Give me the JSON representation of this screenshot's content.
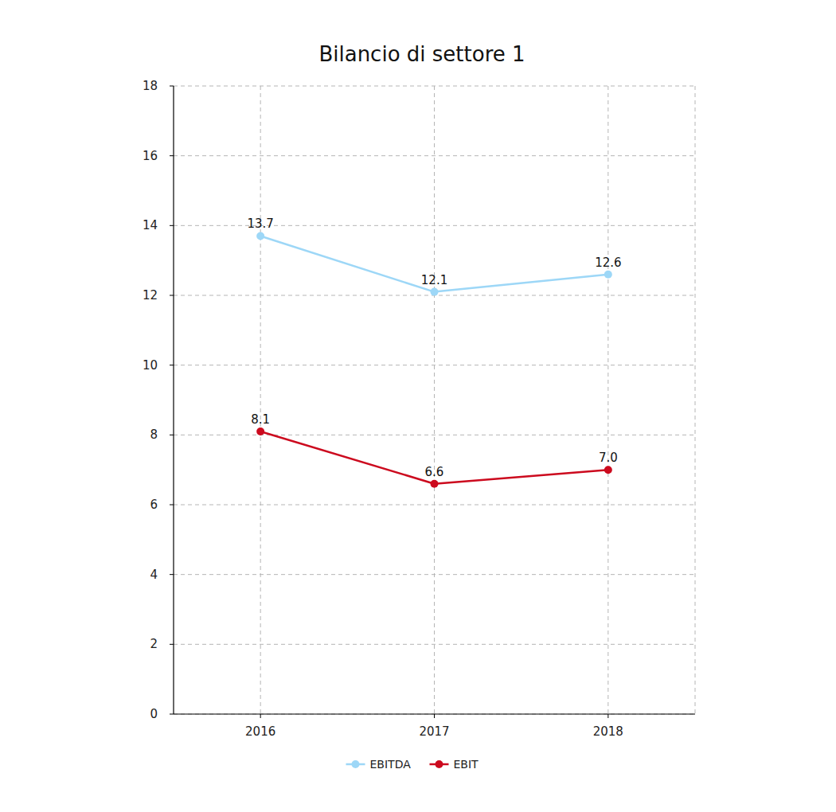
{
  "chart_data": {
    "type": "line",
    "title": "Bilancio di settore 1",
    "categories": [
      "2016",
      "2017",
      "2018"
    ],
    "series": [
      {
        "name": "EBITDA",
        "color": "#9dd7f7",
        "values": [
          13.7,
          12.1,
          12.6
        ]
      },
      {
        "name": "EBIT",
        "color": "#cc0a1e",
        "values": [
          8.1,
          6.6,
          7.0
        ],
        "value_labels": [
          "8.1",
          "6.6",
          "7.0"
        ]
      }
    ],
    "ylim": [
      0,
      18
    ],
    "yticks": [
      0,
      2,
      4,
      6,
      8,
      10,
      12,
      14,
      16,
      18
    ],
    "grid": true,
    "data_labels": true,
    "legend": "bottom",
    "marker": "circle"
  }
}
